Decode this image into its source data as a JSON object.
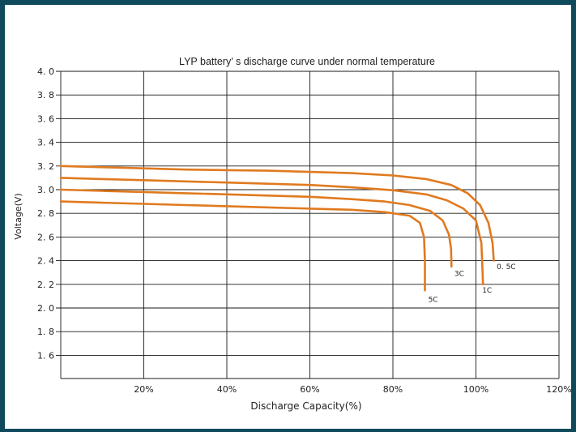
{
  "chart_data": {
    "type": "line",
    "title": "LYP battery’ s discharge curve under normal temperature",
    "xlabel": "Discharge Capacity(%)",
    "ylabel": "Voltage(V)",
    "xlim": [
      0,
      120
    ],
    "ylim": [
      1.5,
      4.0
    ],
    "x_tick_labels": [
      "20%",
      "40%",
      "60%",
      "80%",
      "100%",
      "120%"
    ],
    "y_tick_labels": [
      "4. 0",
      "3. 8",
      "3. 6",
      "3. 4",
      "3. 2",
      "3. 0",
      "2. 8",
      "2. 6",
      "2. 4",
      "2. 2",
      "2. 0",
      "1. 8",
      "1. 6"
    ],
    "grid": true,
    "colors": {
      "series": "#e07a1f",
      "frame": "#0e4a5c"
    },
    "series": [
      {
        "name": "0. 5C",
        "points": [
          [
            0,
            3.2
          ],
          [
            10,
            3.19
          ],
          [
            20,
            3.18
          ],
          [
            30,
            3.17
          ],
          [
            40,
            3.165
          ],
          [
            50,
            3.16
          ],
          [
            60,
            3.15
          ],
          [
            70,
            3.14
          ],
          [
            80,
            3.12
          ],
          [
            88,
            3.09
          ],
          [
            94,
            3.04
          ],
          [
            98,
            2.97
          ],
          [
            101,
            2.87
          ],
          [
            103,
            2.72
          ],
          [
            104,
            2.55
          ],
          [
            104.3,
            2.4
          ]
        ]
      },
      {
        "name": "1C",
        "points": [
          [
            0,
            3.1
          ],
          [
            10,
            3.09
          ],
          [
            20,
            3.08
          ],
          [
            30,
            3.07
          ],
          [
            40,
            3.06
          ],
          [
            50,
            3.05
          ],
          [
            60,
            3.04
          ],
          [
            70,
            3.02
          ],
          [
            80,
            2.995
          ],
          [
            88,
            2.96
          ],
          [
            93,
            2.91
          ],
          [
            97,
            2.84
          ],
          [
            100,
            2.74
          ],
          [
            101.3,
            2.55
          ],
          [
            101.6,
            2.3
          ],
          [
            101.7,
            2.2
          ]
        ]
      },
      {
        "name": "3C",
        "points": [
          [
            0,
            3.0
          ],
          [
            10,
            2.99
          ],
          [
            20,
            2.98
          ],
          [
            30,
            2.97
          ],
          [
            40,
            2.96
          ],
          [
            50,
            2.95
          ],
          [
            60,
            2.94
          ],
          [
            70,
            2.92
          ],
          [
            78,
            2.9
          ],
          [
            84,
            2.87
          ],
          [
            89,
            2.82
          ],
          [
            92,
            2.74
          ],
          [
            93.5,
            2.62
          ],
          [
            94,
            2.5
          ],
          [
            94.1,
            2.35
          ]
        ]
      },
      {
        "name": "5C",
        "points": [
          [
            0,
            2.9
          ],
          [
            10,
            2.89
          ],
          [
            20,
            2.88
          ],
          [
            30,
            2.87
          ],
          [
            40,
            2.86
          ],
          [
            50,
            2.85
          ],
          [
            60,
            2.84
          ],
          [
            70,
            2.83
          ],
          [
            78,
            2.81
          ],
          [
            84,
            2.78
          ],
          [
            86.5,
            2.72
          ],
          [
            87.5,
            2.6
          ],
          [
            87.7,
            2.4
          ],
          [
            87.7,
            2.15
          ]
        ]
      }
    ],
    "series_label_points": [
      [
        105,
        2.33
      ],
      [
        101.5,
        2.13
      ],
      [
        94.8,
        2.27
      ],
      [
        88.5,
        2.05
      ]
    ]
  }
}
